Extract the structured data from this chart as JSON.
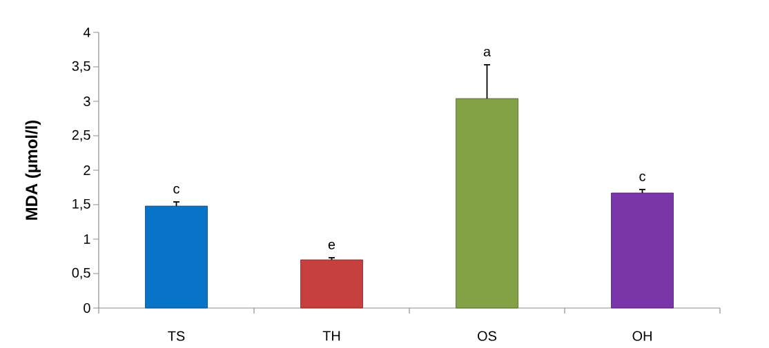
{
  "chart_data": {
    "type": "bar",
    "ylabel": "MDA (µmol/l)",
    "categories": [
      "TS",
      "TH",
      "OS",
      "OH"
    ],
    "values": [
      1.48,
      0.7,
      3.04,
      1.67
    ],
    "colors": [
      "#0874c8",
      "#c8403d",
      "#83a145",
      "#7a36a8"
    ],
    "errors": [
      [
        1.48,
        1.54
      ],
      [
        0.7,
        0.73
      ],
      [
        3.04,
        3.53
      ],
      [
        1.67,
        1.72
      ]
    ],
    "ylim": [
      0,
      4
    ],
    "yticks": [
      0,
      {
        "value": 0.5,
        "label": "0,5"
      },
      1,
      {
        "value": 1.5,
        "label": "1,5"
      },
      2,
      {
        "value": 2.5,
        "label": "2,5"
      },
      3,
      {
        "value": 3.5,
        "label": "3,5"
      },
      4
    ],
    "annotations": [
      {
        "text": "c",
        "x": "TS",
        "y": 1.54
      },
      {
        "text": "e",
        "x": "TH",
        "y": 0.73
      },
      {
        "text": "a",
        "x": "OS",
        "y": 3.53
      },
      {
        "text": "c",
        "x": "OH",
        "y": 1.72
      }
    ]
  }
}
